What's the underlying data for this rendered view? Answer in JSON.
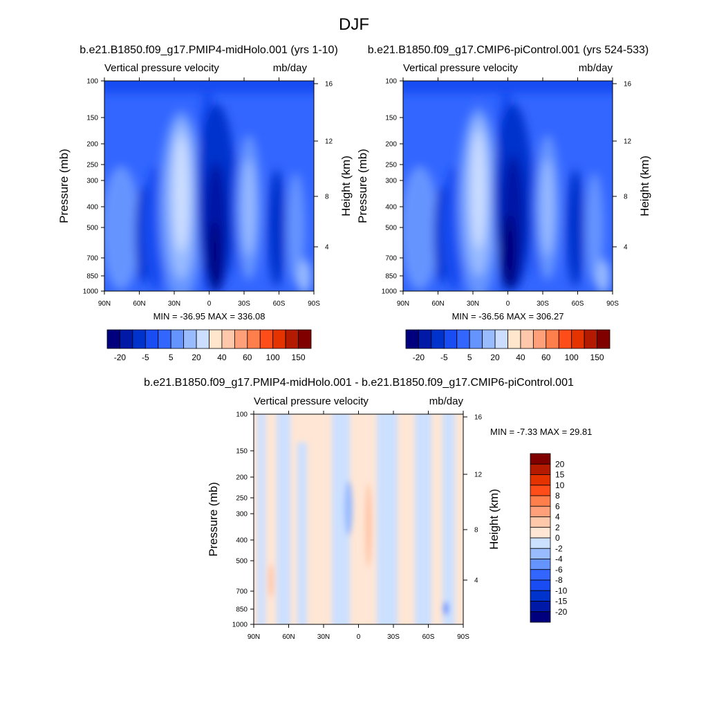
{
  "figure": {
    "title": "DJF"
  },
  "colors": {
    "abs_levels": [
      "#00007f",
      "#0019a6",
      "#0032cc",
      "#194cf2",
      "#3366ff",
      "#6694ff",
      "#99bbff",
      "#ccdeff",
      "#ffe6cc",
      "#ffc8aa",
      "#ffa07a",
      "#ff7f4c",
      "#ff4d19",
      "#e53300",
      "#b31a00",
      "#800000"
    ],
    "diff_levels": [
      "#00007f",
      "#0019a6",
      "#0032cc",
      "#194cf2",
      "#3366ff",
      "#6694ff",
      "#99bbff",
      "#cce0ff",
      "#ffe6d5",
      "#ffc8aa",
      "#ffa07a",
      "#ff7f4c",
      "#ff4d19",
      "#e53300",
      "#b31a00",
      "#800000"
    ]
  },
  "chart_data": [
    {
      "type": "heatmap",
      "title": "b.e21.B1850.f09_g17.PMIP4-midHolo.001 (yrs 1-10)",
      "left_label": "Vertical pressure velocity",
      "right_label": "mb/day",
      "ylabel": "Pressure (mb)",
      "y2label": "Height (km)",
      "x_ticks": [
        "90N",
        "60N",
        "30N",
        "0",
        "30S",
        "60S",
        "90S"
      ],
      "y_ticks": [
        "100",
        "150",
        "200",
        "250",
        "300",
        "400",
        "500",
        "700",
        "850",
        "1000"
      ],
      "y2_ticks": [
        "16",
        "12",
        "8",
        "4"
      ],
      "stats": "MIN = -36.95  MAX = 336.08",
      "colorbar_labels": [
        "-20",
        "-5",
        "5",
        "20",
        "40",
        "60",
        "100",
        "150"
      ]
    },
    {
      "type": "heatmap",
      "title": "b.e21.B1850.f09_g17.CMIP6-piControl.001 (yrs 524-533)",
      "left_label": "Vertical pressure velocity",
      "right_label": "mb/day",
      "ylabel": "Pressure (mb)",
      "y2label": "Height (km)",
      "x_ticks": [
        "90N",
        "60N",
        "30N",
        "0",
        "30S",
        "60S",
        "90S"
      ],
      "y_ticks": [
        "100",
        "150",
        "200",
        "250",
        "300",
        "400",
        "500",
        "700",
        "850",
        "1000"
      ],
      "y2_ticks": [
        "16",
        "12",
        "8",
        "4"
      ],
      "stats": "MIN = -36.56  MAX = 306.27",
      "colorbar_labels": [
        "-20",
        "-5",
        "5",
        "20",
        "40",
        "60",
        "100",
        "150"
      ]
    },
    {
      "type": "heatmap",
      "title": "b.e21.B1850.f09_g17.PMIP4-midHolo.001 - b.e21.B1850.f09_g17.CMIP6-piControl.001",
      "left_label": "Vertical pressure velocity",
      "right_label": "mb/day",
      "ylabel": "Pressure (mb)",
      "y2label": "Height (km)",
      "x_ticks": [
        "90N",
        "60N",
        "30N",
        "0",
        "30S",
        "60S",
        "90S"
      ],
      "y_ticks": [
        "100",
        "150",
        "200",
        "250",
        "300",
        "400",
        "500",
        "700",
        "850",
        "1000"
      ],
      "y2_ticks": [
        "16",
        "12",
        "8",
        "4"
      ],
      "stats": "MIN =  -7.33  MAX =  29.81",
      "colorbar_labels": [
        "20",
        "15",
        "10",
        "8",
        "6",
        "4",
        "2",
        "0",
        "-2",
        "-4",
        "-6",
        "-8",
        "-10",
        "-15",
        "-20"
      ]
    }
  ]
}
